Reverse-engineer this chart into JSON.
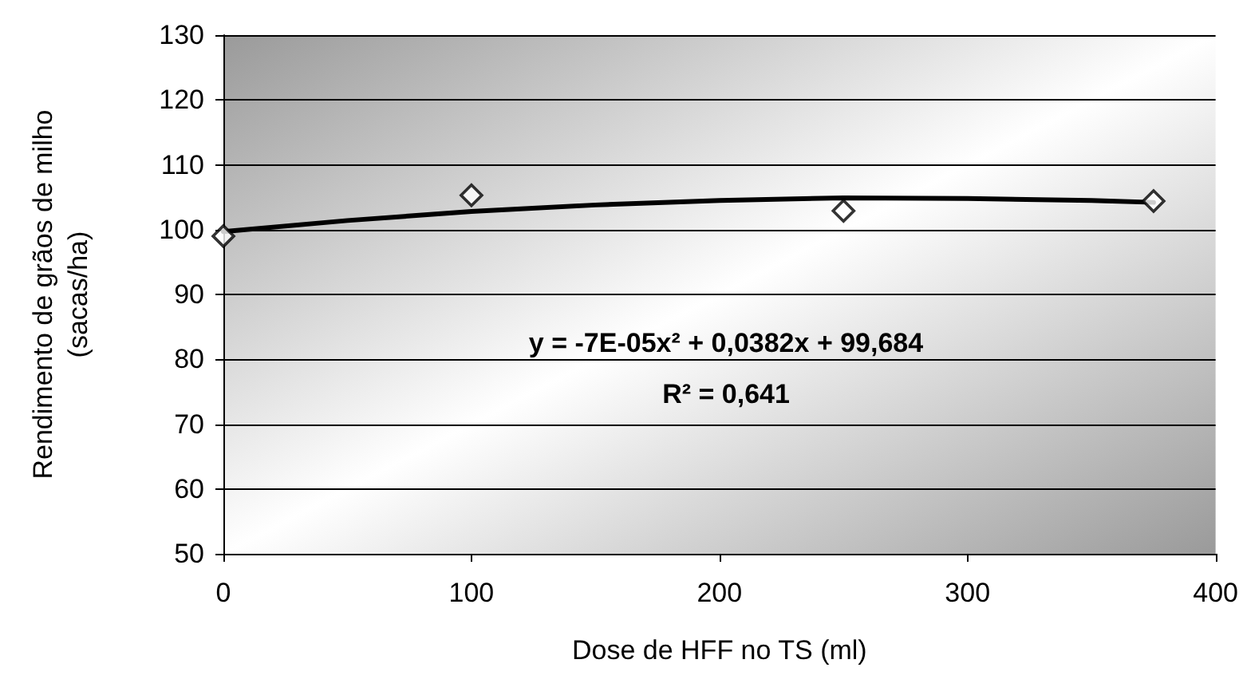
{
  "chart_data": {
    "type": "scatter",
    "xlabel": "Dose de HFF no TS (ml)",
    "ylabel": "Rendimento de grãos de milho\n(sacas/ha)",
    "xlim": [
      0,
      400
    ],
    "xticks": [
      0,
      100,
      200,
      300,
      400
    ],
    "ylim": [
      50,
      130
    ],
    "yticks": [
      50,
      60,
      70,
      80,
      90,
      100,
      110,
      120,
      130
    ],
    "grid": "y",
    "series": [
      {
        "color": "#000000",
        "marker": "diamond",
        "x": [
          0,
          100,
          250,
          375
        ],
        "values": [
          99.0,
          105.3,
          102.9,
          104.4
        ]
      },
      {
        "type": "line",
        "color": "#000000",
        "marker": "none",
        "line_style": "solid",
        "x": [
          0,
          50,
          100,
          150,
          200,
          250,
          300,
          350,
          375
        ],
        "values": [
          99.7,
          101.4,
          102.8,
          103.8,
          104.5,
          104.9,
          104.8,
          104.5,
          104.2
        ]
      }
    ],
    "annotations": [
      "y = -7E-05x² + 0,0382x + 99,684",
      "R² = 0,641"
    ]
  }
}
